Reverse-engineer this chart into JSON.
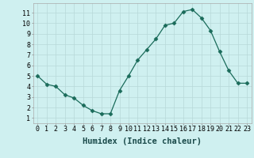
{
  "x": [
    0,
    1,
    2,
    3,
    4,
    5,
    6,
    7,
    8,
    9,
    10,
    11,
    12,
    13,
    14,
    15,
    16,
    17,
    18,
    19,
    20,
    21,
    22,
    23
  ],
  "y": [
    5.0,
    4.2,
    4.0,
    3.2,
    2.9,
    2.2,
    1.7,
    1.4,
    1.4,
    3.6,
    5.0,
    6.5,
    7.5,
    8.5,
    9.8,
    10.0,
    11.1,
    11.3,
    10.5,
    9.3,
    7.3,
    5.5,
    4.3,
    4.3
  ],
  "line_color": "#1a6b5a",
  "marker": "D",
  "marker_size": 2.5,
  "bg_color": "#cff0f0",
  "grid_color": "#b8d8d8",
  "xlabel": "Humidex (Indice chaleur)",
  "xlim": [
    -0.5,
    23.5
  ],
  "ylim": [
    0.5,
    11.9
  ],
  "yticks": [
    1,
    2,
    3,
    4,
    5,
    6,
    7,
    8,
    9,
    10,
    11
  ],
  "xticks": [
    0,
    1,
    2,
    3,
    4,
    5,
    6,
    7,
    8,
    9,
    10,
    11,
    12,
    13,
    14,
    15,
    16,
    17,
    18,
    19,
    20,
    21,
    22,
    23
  ],
  "tick_fontsize": 6,
  "label_fontsize": 7.5
}
